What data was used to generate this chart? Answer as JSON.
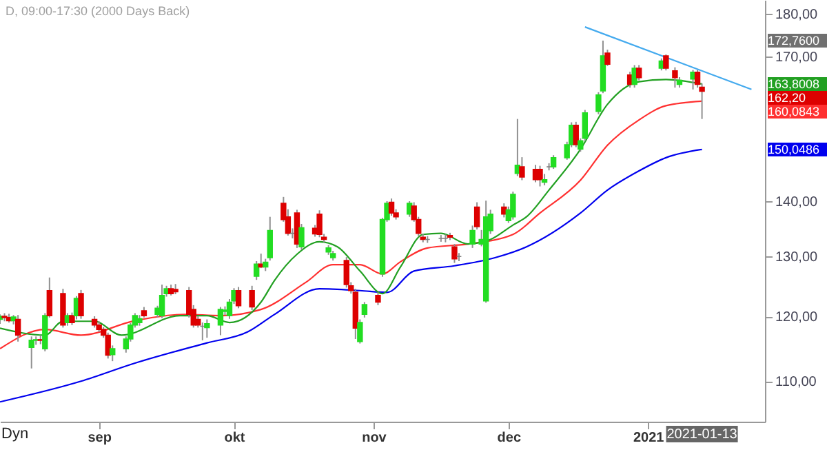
{
  "chart_data": {
    "type": "candlestick",
    "title": "D, 09:00-17:30 (2000 Days Back)",
    "x": [
      "2020-08-10",
      "2020-08-11",
      "2020-08-12",
      "2020-08-13",
      "2020-08-14",
      "2020-08-17",
      "2020-08-18",
      "2020-08-19",
      "2020-08-20",
      "2020-08-21",
      "2020-08-24",
      "2020-08-25",
      "2020-08-26",
      "2020-08-27",
      "2020-08-28",
      "2020-08-31",
      "2020-09-01",
      "2020-09-02",
      "2020-09-03",
      "2020-09-04",
      "2020-09-07",
      "2020-09-08",
      "2020-09-09",
      "2020-09-10",
      "2020-09-11",
      "2020-09-14",
      "2020-09-15",
      "2020-09-16",
      "2020-09-17",
      "2020-09-18",
      "2020-09-21",
      "2020-09-22",
      "2020-09-23",
      "2020-09-24",
      "2020-09-25",
      "2020-09-28",
      "2020-09-29",
      "2020-09-30",
      "2020-10-01",
      "2020-10-02",
      "2020-10-05",
      "2020-10-06",
      "2020-10-07",
      "2020-10-08",
      "2020-10-09",
      "2020-10-12",
      "2020-10-13",
      "2020-10-14",
      "2020-10-15",
      "2020-10-16",
      "2020-10-19",
      "2020-10-20",
      "2020-10-21",
      "2020-10-22",
      "2020-10-23",
      "2020-10-26",
      "2020-10-27",
      "2020-10-28",
      "2020-10-29",
      "2020-10-30",
      "2020-11-02",
      "2020-11-03",
      "2020-11-04",
      "2020-11-05",
      "2020-11-06",
      "2020-11-09",
      "2020-11-10",
      "2020-11-11",
      "2020-11-12",
      "2020-11-13",
      "2020-11-16",
      "2020-11-17",
      "2020-11-18",
      "2020-11-19",
      "2020-11-20",
      "2020-11-23",
      "2020-11-24",
      "2020-11-25",
      "2020-11-26",
      "2020-11-27",
      "2020-11-30",
      "2020-12-01",
      "2020-12-02",
      "2020-12-03",
      "2020-12-04",
      "2020-12-07",
      "2020-12-08",
      "2020-12-09",
      "2020-12-10",
      "2020-12-11",
      "2020-12-14",
      "2020-12-15",
      "2020-12-16",
      "2020-12-17",
      "2020-12-18",
      "2020-12-21",
      "2020-12-22",
      "2020-12-23",
      "2020-12-28",
      "2020-12-29",
      "2020-12-30",
      "2021-01-04",
      "2021-01-05",
      "2021-01-07",
      "2021-01-08",
      "2021-01-11",
      "2021-01-12",
      "2021-01-13"
    ],
    "ohlc": [
      [
        119.5,
        120.3,
        118.8,
        120.0
      ],
      [
        120.0,
        120.5,
        119.2,
        119.8
      ],
      [
        119.8,
        120.4,
        119.0,
        119.3
      ],
      [
        119.3,
        120.2,
        118.7,
        119.9
      ],
      [
        119.5,
        120.2,
        116.0,
        117.0
      ],
      [
        115.1,
        116.8,
        111.9,
        116.2
      ],
      [
        116.2,
        116.8,
        115.5,
        116.3
      ],
      [
        116.3,
        117.0,
        115.6,
        116.2
      ],
      [
        114.9,
        120.5,
        114.5,
        120.1
      ],
      [
        124.2,
        126.4,
        119.8,
        120.1
      ],
      [
        123.7,
        124.5,
        118.2,
        118.6
      ],
      [
        119.0,
        120.5,
        118.5,
        120.1
      ],
      [
        120.1,
        120.6,
        118.6,
        119.0
      ],
      [
        120.1,
        123.3,
        119.5,
        122.9
      ],
      [
        123.7,
        124.3,
        119.6,
        120.1
      ],
      [
        119.5,
        120.0,
        118.2,
        118.6
      ],
      [
        118.6,
        119.2,
        117.5,
        117.9
      ],
      [
        117.9,
        118.3,
        116.6,
        117.0
      ],
      [
        117.0,
        117.4,
        113.4,
        113.9
      ],
      [
        114.0,
        115.4,
        113.0,
        114.9
      ],
      [
        114.9,
        116.8,
        114.3,
        116.4
      ],
      [
        116.4,
        118.9,
        116.0,
        118.6
      ],
      [
        118.6,
        120.5,
        118.2,
        120.1
      ],
      [
        119.0,
        120.2,
        118.5,
        119.6
      ],
      [
        120.9,
        121.5,
        119.8,
        120.1
      ],
      [
        120.3,
        121.7,
        119.8,
        121.3
      ],
      [
        120.1,
        125.2,
        119.7,
        123.4
      ],
      [
        123.7,
        125.0,
        123.2,
        124.5
      ],
      [
        124.5,
        125.2,
        123.4,
        123.7
      ],
      [
        124.4,
        125.3,
        123.6,
        124.0
      ],
      [
        124.2,
        124.8,
        119.8,
        120.3
      ],
      [
        121.1,
        121.8,
        118.2,
        118.6
      ],
      [
        119.5,
        120.0,
        118.2,
        118.6
      ],
      [
        118.4,
        119.0,
        116.2,
        118.4
      ],
      [
        118.2,
        119.5,
        116.6,
        118.8
      ],
      [
        118.6,
        121.5,
        117.0,
        121.1
      ],
      [
        120.8,
        121.6,
        120.2,
        121.0
      ],
      [
        120.1,
        122.8,
        119.6,
        122.3
      ],
      [
        122.5,
        124.6,
        122.0,
        124.2
      ],
      [
        124.2,
        124.8,
        121.3,
        121.7
      ],
      [
        124.2,
        125.0,
        121.0,
        121.5
      ],
      [
        126.6,
        129.2,
        126.0,
        128.7
      ],
      [
        128.7,
        130.5,
        128.0,
        128.2
      ],
      [
        128.2,
        129.6,
        127.5,
        129.0
      ],
      [
        129.8,
        137.1,
        129.3,
        134.6
      ],
      [
        139.6,
        140.8,
        136.2,
        136.6
      ],
      [
        137.1,
        138.5,
        133.7,
        134.1
      ],
      [
        134.1,
        135.0,
        133.2,
        134.1
      ],
      [
        137.8,
        138.4,
        131.5,
        132.2
      ],
      [
        131.7,
        135.8,
        131.2,
        135.1
      ],
      [
        135.0,
        135.6,
        133.5,
        134.0
      ],
      [
        137.6,
        138.3,
        133.4,
        133.9
      ],
      [
        133.4,
        134.0,
        132.5,
        133.0
      ],
      [
        130.8,
        132.0,
        130.3,
        131.5
      ],
      [
        129.8,
        131.0,
        129.3,
        130.5
      ],
      [
        129.3,
        129.9,
        124.7,
        125.2
      ],
      [
        125.0,
        125.6,
        123.7,
        124.2
      ],
      [
        123.9,
        124.5,
        116.4,
        118.1
      ],
      [
        116.0,
        119.5,
        115.7,
        119.0
      ],
      [
        120.3,
        122.3,
        119.8,
        121.9
      ],
      [
        123.4,
        123.9,
        121.8,
        122.3
      ],
      [
        127.0,
        136.9,
        126.5,
        136.6
      ],
      [
        136.6,
        140.0,
        136.2,
        139.6
      ],
      [
        139.8,
        140.5,
        137.3,
        137.8
      ],
      [
        137.8,
        138.5,
        136.6,
        137.1
      ],
      [
        137.6,
        140.0,
        137.1,
        139.6
      ],
      [
        139.1,
        139.8,
        136.2,
        136.6
      ],
      [
        136.6,
        137.1,
        133.6,
        134.1
      ],
      [
        133.4,
        134.0,
        132.5,
        133.0
      ],
      [
        133.0,
        133.6,
        132.4,
        133.0
      ],
      [
        133.2,
        133.8,
        132.6,
        133.2
      ],
      [
        133.2,
        133.9,
        132.5,
        133.2
      ],
      [
        133.7,
        134.2,
        132.9,
        133.4
      ],
      [
        131.7,
        132.2,
        128.9,
        129.6
      ],
      [
        130.0,
        130.6,
        129.2,
        130.0
      ],
      [
        132.2,
        135.5,
        131.5,
        134.6
      ],
      [
        138.9,
        139.8,
        134.8,
        135.3
      ],
      [
        132.2,
        134.7,
        131.8,
        133.0
      ],
      [
        122.5,
        140.1,
        122.2,
        137.1
      ],
      [
        134.6,
        138.4,
        134.0,
        137.6
      ],
      [
        138.9,
        139.6,
        137.0,
        137.6
      ],
      [
        136.4,
        139.0,
        136.0,
        138.4
      ],
      [
        137.1,
        141.8,
        136.6,
        141.3
      ],
      [
        145.3,
        156.3,
        144.8,
        146.9
      ],
      [
        146.6,
        148.5,
        144.0,
        144.6
      ],
      [
        146.1,
        147.0,
        143.6,
        144.1
      ],
      [
        146.1,
        146.8,
        142.8,
        144.1
      ],
      [
        143.6,
        145.2,
        143.0,
        144.1
      ],
      [
        146.6,
        147.3,
        145.9,
        146.6
      ],
      [
        146.6,
        148.9,
        146.2,
        148.4
      ],
      [
        148.4,
        151.6,
        148.0,
        151.0
      ],
      [
        151.0,
        155.6,
        150.5,
        155.0
      ],
      [
        155.0,
        155.7,
        150.5,
        151.0
      ],
      [
        150.1,
        152.3,
        149.6,
        151.8
      ],
      [
        152.3,
        158.2,
        151.8,
        157.6
      ],
      [
        157.9,
        162.0,
        157.3,
        161.4
      ],
      [
        162.3,
        173.6,
        161.8,
        170.1
      ],
      [
        170.7,
        171.5,
        167.8,
        168.2
      ],
      [
        165.8,
        166.5,
        163.0,
        163.7
      ],
      [
        163.7,
        168.0,
        163.0,
        167.3
      ],
      [
        167.3,
        168.0,
        164.6,
        165.2
      ],
      [
        167.3,
        169.5,
        166.8,
        168.9
      ],
      [
        170.1,
        170.4,
        166.8,
        167.3
      ],
      [
        166.7,
        167.5,
        163.0,
        165.2
      ],
      [
        163.7,
        165.3,
        163.0,
        164.6
      ],
      [
        164.9,
        166.9,
        162.6,
        166.4
      ],
      [
        166.4,
        166.9,
        163.0,
        163.7
      ],
      [
        163.1,
        163.9,
        156.3,
        162.2
      ]
    ],
    "series": [
      {
        "type": "line",
        "color": "#0000ee",
        "x": [
          "2020-08-10",
          "2020-08-28",
          "2020-09-09",
          "2020-09-25",
          "2020-10-04",
          "2020-10-10",
          "2020-10-20",
          "2020-10-29",
          "2020-11-04",
          "2020-11-10",
          "2020-11-19",
          "2020-11-28",
          "2020-12-05",
          "2020-12-17",
          "2020-12-23",
          "2020-12-30",
          "2021-01-05",
          "2021-01-13"
        ],
        "values": [
          107.0,
          110.0,
          112.7,
          115.8,
          117.5,
          120.3,
          124.5,
          124.2,
          123.9,
          127.5,
          128.4,
          129.8,
          131.7,
          137.8,
          142.1,
          145.8,
          148.4,
          150.05
        ]
      },
      {
        "type": "line",
        "color": "#ff3030",
        "x": [
          "2020-08-10",
          "2020-08-20",
          "2020-08-28",
          "2020-09-09",
          "2020-09-20",
          "2020-09-28",
          "2020-10-07",
          "2020-10-17",
          "2020-10-23",
          "2020-10-29",
          "2020-11-03",
          "2020-11-07",
          "2020-11-13",
          "2020-11-22",
          "2020-12-02",
          "2020-12-08",
          "2020-12-17",
          "2020-12-23",
          "2020-12-30",
          "2021-01-05",
          "2021-01-13"
        ],
        "values": [
          114.9,
          117.9,
          117.0,
          119.3,
          120.3,
          120.1,
          121.1,
          125.6,
          128.6,
          128.6,
          127.0,
          129.1,
          131.5,
          132.2,
          133.9,
          137.8,
          144.0,
          150.9,
          156.1,
          159.1,
          160.08
        ]
      },
      {
        "type": "line",
        "color": "#22a022",
        "x": [
          "2020-08-10",
          "2020-08-20",
          "2020-08-24",
          "2020-08-31",
          "2020-09-06",
          "2020-09-19",
          "2020-09-25",
          "2020-09-30",
          "2020-10-07",
          "2020-10-10",
          "2020-10-15",
          "2020-10-20",
          "2020-10-24",
          "2020-10-29",
          "2020-11-03",
          "2020-11-07",
          "2020-11-12",
          "2020-11-16",
          "2020-11-22",
          "2020-11-27",
          "2020-12-02",
          "2020-12-05",
          "2020-12-10",
          "2020-12-17",
          "2020-12-23",
          "2020-12-30",
          "2021-01-05",
          "2021-01-13"
        ],
        "values": [
          118.1,
          117.0,
          119.2,
          119.2,
          117.0,
          120.1,
          120.1,
          119.0,
          122.3,
          125.9,
          130.4,
          132.6,
          131.7,
          127.5,
          123.7,
          128.2,
          133.9,
          134.1,
          132.2,
          133.0,
          135.6,
          137.1,
          142.1,
          150.1,
          159.4,
          164.3,
          164.8,
          163.8
        ]
      },
      {
        "type": "line",
        "color": "#44aaee",
        "x": [
          "2020-12-18",
          "2021-01-24"
        ],
        "values": [
          176.8,
          162.6
        ]
      }
    ],
    "xlim": [
      "2020-08-10",
      "2021-01-27"
    ],
    "xticks": [
      {
        "value": "2020-09-01",
        "label": "sep"
      },
      {
        "value": "2020-10-01",
        "label": "okt"
      },
      {
        "value": "2020-11-01",
        "label": "nov"
      },
      {
        "value": "2020-12-01",
        "label": "dec"
      },
      {
        "value": "2021-01-01",
        "label": "2021"
      }
    ],
    "ylim": [
      104.2,
      183.3
    ],
    "yticks": [
      {
        "value": 110,
        "label": "110,00"
      },
      {
        "value": 120,
        "label": "120,00"
      },
      {
        "value": 130,
        "label": "130,00"
      },
      {
        "value": 140,
        "label": "140,00"
      },
      {
        "value": 170,
        "label": "170,00"
      },
      {
        "value": 180,
        "label": "180,00"
      }
    ],
    "log": true,
    "annotations": [
      "172,7600",
      "163,8008",
      "162,20",
      "160,0843",
      "150,0486",
      "2021-01-13",
      "Dyn"
    ]
  }
}
